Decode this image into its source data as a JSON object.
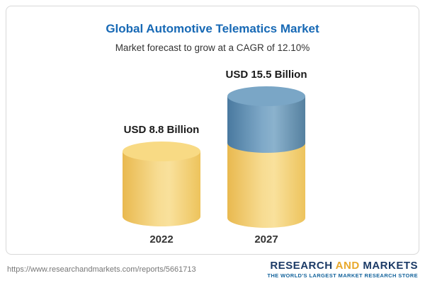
{
  "chart": {
    "title": "Global Automotive Telematics Market",
    "subtitle": "Market forecast to grow at a CAGR of 12.10%"
  },
  "chart_data": {
    "type": "bar",
    "title": "Global Automotive Telematics Market",
    "subtitle": "Market forecast to grow at a CAGR of 12.10%",
    "cagr": "12.10%",
    "unit": "USD Billion",
    "categories": [
      "2022",
      "2027"
    ],
    "values": [
      8.8,
      15.5
    ],
    "value_labels": [
      "USD 8.8 Billion",
      "USD 15.5 Billion"
    ],
    "colors": {
      "base": "#f2cf6f",
      "growth_segment": "#6795ba"
    },
    "notes": "2027 cylinder is stacked: yellow base equals the 2022 value, blue top segment is the growth to 15.5"
  },
  "footer": {
    "url": "https://www.researchandmarkets.com/reports/5661713",
    "logo": {
      "word1": "RESEARCH",
      "word2": "AND",
      "word3": "MARKETS",
      "tagline": "THE WORLD'S LARGEST MARKET RESEARCH STORE"
    }
  }
}
